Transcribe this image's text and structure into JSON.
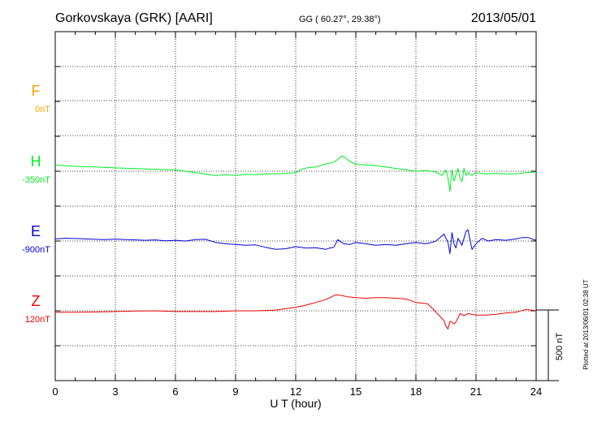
{
  "header": {
    "station": "Gorkovskaya (GRK)  [AARI]",
    "coords": "GG ( 60.27°,  29.38°)",
    "date": "2013/05/01"
  },
  "plotted_note": "Plotted at 2013/06/01 02:38 UT",
  "scale_label": "500 nT",
  "colors": {
    "F": "#f5a800",
    "H": "#00ee22",
    "E": "#0000dd",
    "Z": "#ee0000",
    "axis": "#000000"
  },
  "chart_data": {
    "type": "line",
    "title": "Gorkovskaya (GRK)  [AARI]",
    "xlabel": "U T (hour)",
    "xlim": [
      0,
      24
    ],
    "x_ticks": [
      0,
      3,
      6,
      9,
      12,
      15,
      18,
      21,
      24
    ],
    "x_tick_labels": [
      "0",
      "3",
      "6",
      "9",
      "12",
      "15",
      "18",
      "21",
      "24"
    ],
    "scale_bar_nT": 500,
    "grid": true,
    "series": [
      {
        "component": "F",
        "label": "F",
        "baseline": "0nT",
        "baseline_level": 3,
        "x": [],
        "values": []
      },
      {
        "component": "H",
        "label": "H",
        "baseline": "-350nT",
        "baseline_level": 2,
        "x": [
          0,
          0.5,
          1,
          2,
          3,
          4,
          5,
          6,
          7,
          7.5,
          8,
          8.5,
          9,
          9.5,
          10,
          10.5,
          11,
          11.5,
          12,
          12.3,
          12.6,
          13,
          13.3,
          13.6,
          13.9,
          14.1,
          14.3,
          14.5,
          14.7,
          15,
          15.5,
          16,
          16.5,
          17,
          17.5,
          18,
          18.5,
          19,
          19.3,
          19.5,
          19.6,
          19.7,
          19.8,
          19.9,
          20,
          20.1,
          20.2,
          20.3,
          20.4,
          20.5,
          20.6,
          20.8,
          21,
          21.5,
          22,
          22.5,
          23,
          23.5,
          24
        ],
        "values": [
          45,
          40,
          35,
          30,
          24,
          19,
          14,
          10,
          -10,
          -20,
          -30,
          -25,
          -30,
          -22,
          -25,
          -18,
          -20,
          -15,
          -10,
          15,
          25,
          30,
          45,
          55,
          65,
          85,
          110,
          95,
          70,
          50,
          45,
          40,
          30,
          20,
          10,
          0,
          5,
          -5,
          -30,
          10,
          -50,
          -145,
          10,
          -70,
          -25,
          20,
          -50,
          -75,
          20,
          -30,
          -10,
          -30,
          -10,
          -20,
          -15,
          -20,
          -18,
          -10,
          -5
        ]
      },
      {
        "component": "E",
        "label": "E",
        "baseline": "-900nT",
        "baseline_level": 1,
        "x": [
          0,
          0.5,
          1,
          1.5,
          2,
          2.5,
          3,
          3.5,
          4,
          4.5,
          5,
          5.5,
          6,
          6.5,
          7,
          7.5,
          8,
          8.5,
          9,
          9.5,
          10,
          10.5,
          11,
          11.5,
          12,
          12.5,
          13,
          13.5,
          13.7,
          13.9,
          14.1,
          14.4,
          14.7,
          15,
          15.5,
          16,
          16.5,
          17,
          17.5,
          18,
          18.5,
          18.8,
          19,
          19.2,
          19.4,
          19.6,
          19.7,
          19.8,
          19.9,
          20,
          20.1,
          20.3,
          20.5,
          20.6,
          20.7,
          20.8,
          21,
          21.3,
          21.6,
          22,
          22.5,
          23,
          23.3,
          23.6,
          24
        ],
        "values": [
          15,
          20,
          18,
          15,
          12,
          10,
          14,
          10,
          8,
          5,
          8,
          2,
          5,
          0,
          10,
          12,
          -10,
          -20,
          -25,
          -30,
          -28,
          -45,
          -60,
          -55,
          -40,
          -50,
          -48,
          -60,
          -50,
          -45,
          10,
          -20,
          -25,
          -10,
          -20,
          -30,
          -25,
          -30,
          -20,
          -10,
          -20,
          -10,
          0,
          25,
          50,
          -10,
          -90,
          60,
          -20,
          -50,
          20,
          -30,
          70,
          80,
          10,
          -60,
          -20,
          20,
          0,
          10,
          5,
          15,
          25,
          25,
          5
        ]
      },
      {
        "component": "Z",
        "label": "Z",
        "baseline": "120nT",
        "baseline_level": 0,
        "x": [
          0,
          1,
          2,
          3,
          4,
          5,
          6,
          7,
          8,
          9,
          10,
          11,
          11.5,
          12,
          12.5,
          13,
          13.5,
          14,
          14.3,
          14.6,
          15,
          15.5,
          16,
          16.5,
          17,
          17.5,
          18,
          18.3,
          18.6,
          19,
          19.2,
          19.4,
          19.5,
          19.6,
          19.7,
          19.8,
          19.9,
          20,
          20.2,
          20.4,
          20.6,
          21,
          21.5,
          22,
          22.5,
          23,
          23.5,
          24
        ],
        "values": [
          -10,
          -10,
          -8,
          -5,
          -2,
          0,
          -5,
          -5,
          -5,
          0,
          0,
          5,
          15,
          25,
          40,
          60,
          80,
          115,
          110,
          100,
          95,
          90,
          95,
          95,
          90,
          85,
          60,
          55,
          50,
          -10,
          -40,
          -70,
          -110,
          -130,
          -75,
          -80,
          -95,
          -80,
          -20,
          -35,
          -20,
          -30,
          -30,
          -25,
          -15,
          -10,
          10,
          0
        ]
      }
    ]
  }
}
